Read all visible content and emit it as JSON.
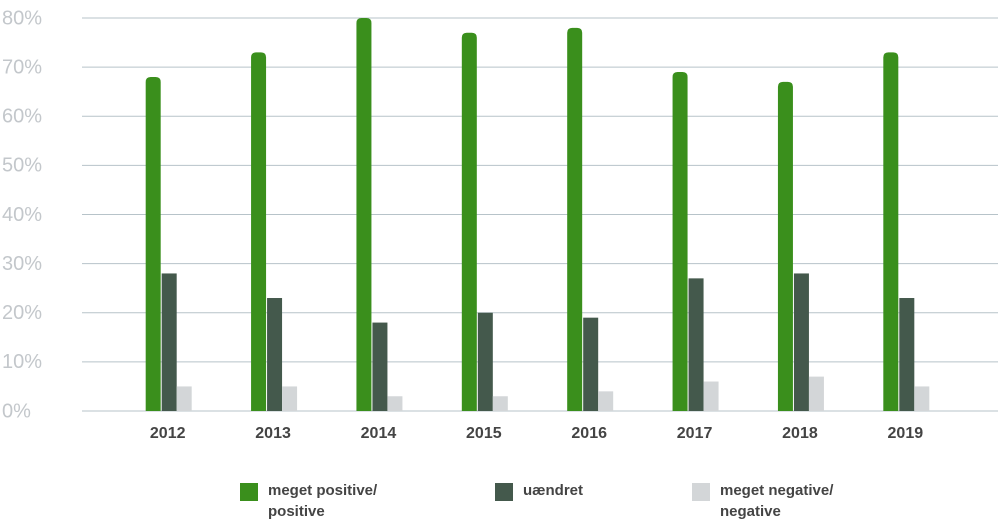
{
  "chart_data": {
    "type": "bar",
    "categories": [
      "2012",
      "2013",
      "2014",
      "2015",
      "2016",
      "2017",
      "2018",
      "2019"
    ],
    "series": [
      {
        "name": "meget positive/ positive",
        "color": "#3a8f1c",
        "values": [
          68,
          73,
          80,
          77,
          78,
          69,
          67,
          73
        ]
      },
      {
        "name": "uændret",
        "color": "#44594c",
        "values": [
          28,
          23,
          18,
          20,
          19,
          27,
          28,
          23
        ]
      },
      {
        "name": "meget negative/ negative",
        "color": "#d3d6d8",
        "values": [
          5,
          5,
          3,
          3,
          4,
          6,
          7,
          5
        ]
      }
    ],
    "ylim": [
      0,
      80
    ],
    "yticks": [
      {
        "value": 0,
        "label": "0%"
      },
      {
        "value": 10,
        "label": "10%"
      },
      {
        "value": 20,
        "label": "20%"
      },
      {
        "value": 30,
        "label": "30%"
      },
      {
        "value": 40,
        "label": "40%"
      },
      {
        "value": 50,
        "label": "50%"
      },
      {
        "value": 60,
        "label": "60%"
      },
      {
        "value": 70,
        "label": "70%"
      },
      {
        "value": 80,
        "label": "80%"
      }
    ],
    "grid": true,
    "legend": "bottom"
  }
}
